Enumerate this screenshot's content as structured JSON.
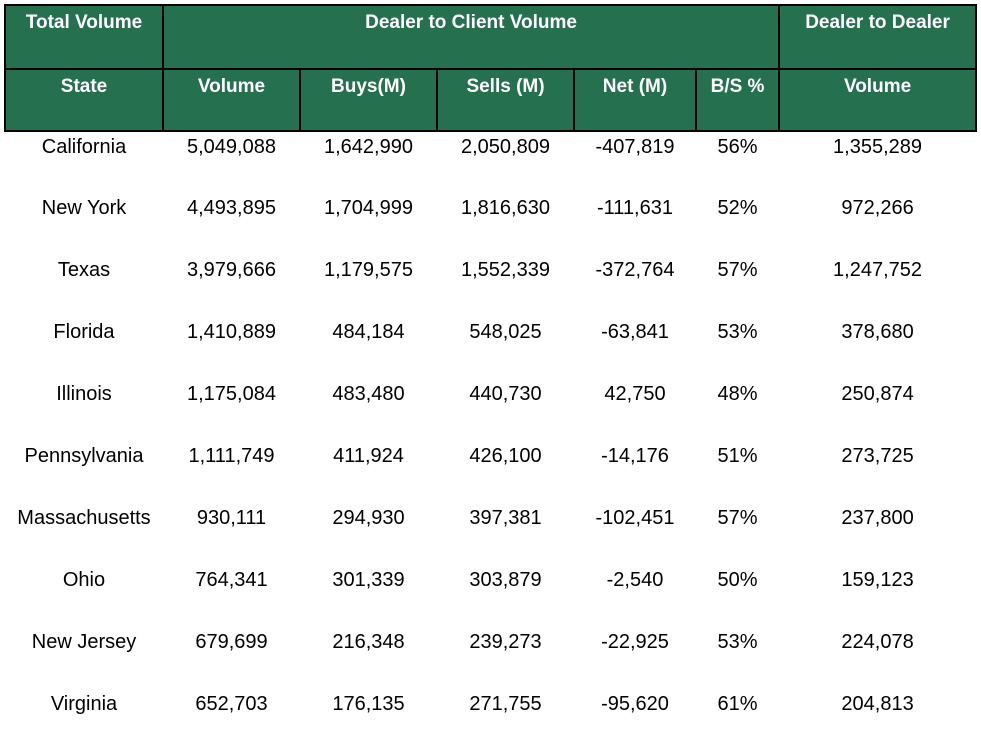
{
  "header_top": {
    "total_volume": "Total Volume",
    "dealer_to_client": "Dealer to Client Volume",
    "dealer_to_dealer": "Dealer to Dealer"
  },
  "header_columns": {
    "state": "State",
    "volume": "Volume",
    "buys": "Buys(M)",
    "sells": "Sells (M)",
    "net": "Net (M)",
    "bs_pct": "B/S %",
    "dd_volume": "Volume"
  },
  "header_color": "#25704f",
  "rows": [
    {
      "state": "California",
      "volume": "5,049,088",
      "buys": "1,642,990",
      "sells": "2,050,809",
      "net": "-407,819",
      "bs_pct": "56%",
      "dd_volume": "1,355,289"
    },
    {
      "state": "New York",
      "volume": "4,493,895",
      "buys": "1,704,999",
      "sells": "1,816,630",
      "net": "-111,631",
      "bs_pct": "52%",
      "dd_volume": "972,266"
    },
    {
      "state": "Texas",
      "volume": "3,979,666",
      "buys": "1,179,575",
      "sells": "1,552,339",
      "net": "-372,764",
      "bs_pct": "57%",
      "dd_volume": "1,247,752"
    },
    {
      "state": "Florida",
      "volume": "1,410,889",
      "buys": "484,184",
      "sells": "548,025",
      "net": "-63,841",
      "bs_pct": "53%",
      "dd_volume": "378,680"
    },
    {
      "state": "Illinois",
      "volume": "1,175,084",
      "buys": "483,480",
      "sells": "440,730",
      "net": "42,750",
      "bs_pct": "48%",
      "dd_volume": "250,874"
    },
    {
      "state": "Pennsylvania",
      "volume": "1,111,749",
      "buys": "411,924",
      "sells": "426,100",
      "net": "-14,176",
      "bs_pct": "51%",
      "dd_volume": "273,725"
    },
    {
      "state": "Massachusetts",
      "volume": "930,111",
      "buys": "294,930",
      "sells": "397,381",
      "net": "-102,451",
      "bs_pct": "57%",
      "dd_volume": "237,800"
    },
    {
      "state": "Ohio",
      "volume": "764,341",
      "buys": "301,339",
      "sells": "303,879",
      "net": "-2,540",
      "bs_pct": "50%",
      "dd_volume": "159,123"
    },
    {
      "state": "New Jersey",
      "volume": "679,699",
      "buys": "216,348",
      "sells": "239,273",
      "net": "-22,925",
      "bs_pct": "53%",
      "dd_volume": "224,078"
    },
    {
      "state": "Virginia",
      "volume": "652,703",
      "buys": "176,135",
      "sells": "271,755",
      "net": "-95,620",
      "bs_pct": "61%",
      "dd_volume": "204,813"
    }
  ]
}
